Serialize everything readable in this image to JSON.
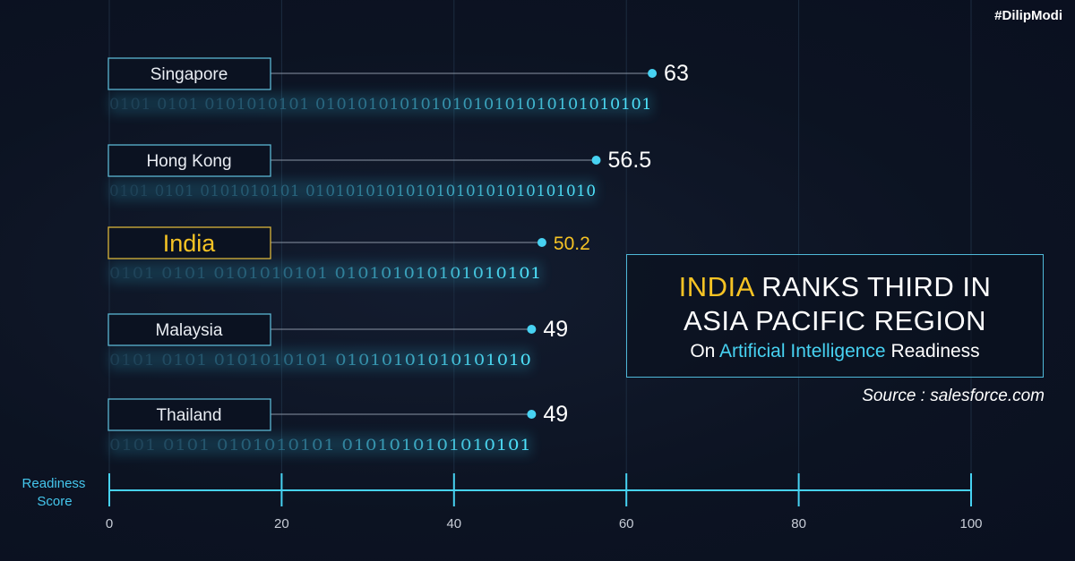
{
  "hashtag": "#DilipModi",
  "headline": {
    "line1_highlight": "INDIA",
    "line1_rest": " RANKS THIRD IN",
    "line2": "ASIA PACIFIC REGION",
    "sub_prefix": "On ",
    "sub_highlight": "Artificial Intelligence",
    "sub_suffix": " Readiness"
  },
  "source": "Source : salesforce.com",
  "colors": {
    "accent_cyan": "#47d2f2",
    "highlight_yellow": "#f6c324",
    "background": "#0d1424",
    "box_border": "#4fb8d8"
  },
  "chart_data": {
    "type": "bar",
    "orientation": "horizontal",
    "categories": [
      "Singapore",
      "Hong Kong",
      "India",
      "Malaysia",
      "Thailand"
    ],
    "values": [
      63,
      56.5,
      50.2,
      49,
      49
    ],
    "value_labels": [
      "63",
      "56.5",
      "50.2",
      "49",
      "49"
    ],
    "highlight": "India",
    "xlabel": "Readiness Score",
    "xlim": [
      0,
      100
    ],
    "xticks": [
      0,
      20,
      40,
      60,
      80,
      100
    ],
    "grid": true,
    "binary_texts": [
      "0101 0101 0101010101 01010101010101010101010101010101",
      "0101 0101 0101010101 01010101010101010101010101010",
      "0101 0101 0101010101 010101010101010101",
      "0101 0101 0101010101 01010101010101010",
      "0101 0101 0101010101 0101010101010101"
    ]
  }
}
